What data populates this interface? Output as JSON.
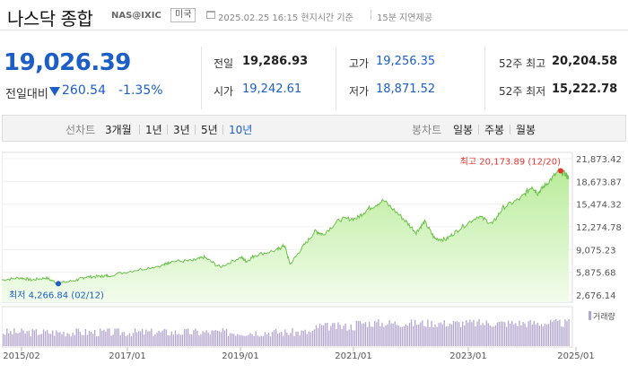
{
  "header": {
    "title": "나스닥 종합",
    "code": "NAS@IXIC",
    "country": "미국",
    "timestamp": "2025.02.25 16:15 현지시간 기준",
    "delay": "15분 지연제공"
  },
  "quote": {
    "price": "19,026.39",
    "change_label": "전일대비",
    "change_value": "260.54",
    "change_pct": "-1.35%",
    "direction": "down"
  },
  "stats": {
    "prev_close_label": "전일",
    "prev_close": "19,286.93",
    "open_label": "시가",
    "open": "19,242.61",
    "high_label": "고가",
    "high": "19,256.35",
    "low_label": "저가",
    "low": "18,871.52",
    "w52_high_label": "52주 최고",
    "w52_high": "20,204.58",
    "w52_low_label": "52주 최저",
    "w52_low": "15,222.78"
  },
  "tabs": {
    "line_label": "선차트",
    "periods": [
      "3개월",
      "1년",
      "3년",
      "5년",
      "10년"
    ],
    "active_period": "10년",
    "candle_label": "봉차트",
    "candles": [
      "일봉",
      "주봉",
      "월봉"
    ]
  },
  "colors": {
    "accent": "#1b5ec6",
    "line": "#6cc24a",
    "area": "#d9f5c8",
    "high_marker": "#e8322e",
    "low_marker": "#1b5ec6",
    "volume": "#b3a6cf"
  },
  "chart_data": {
    "type": "area",
    "x_range": [
      "2015/02",
      "2025/02"
    ],
    "x_ticks": [
      "2015/02",
      "2017/01",
      "2019/01",
      "2021/01",
      "2023/01",
      "2025/01"
    ],
    "y_ticks": [
      "21,873.42",
      "18,673.87",
      "15,474.32",
      "12,274.78",
      "9,075.23",
      "5,875.68",
      "2,676.14"
    ],
    "ylim": [
      2676.14,
      21873.42
    ],
    "high_annotation": "최고 20,173.89 (12/20)",
    "low_annotation": "최저 4,266.84 (02/12)",
    "volume_label": "거래량",
    "series": [
      {
        "x": [
          2015.12,
          2015.45,
          2015.65,
          2015.9,
          2016.12,
          2016.45,
          2016.6,
          2016.85,
          2017.0,
          2017.5,
          2017.99,
          2018.1,
          2018.5,
          2018.7,
          2018.98,
          2019.35,
          2019.45,
          2019.6,
          2019.99,
          2020.12,
          2020.22,
          2020.45,
          2020.67,
          2020.8,
          2021.1,
          2021.4,
          2021.6,
          2021.87,
          2022.2,
          2022.45,
          2022.6,
          2022.78,
          2022.98,
          2023.2,
          2023.55,
          2023.8,
          2023.99,
          2024.3,
          2024.5,
          2024.6,
          2024.75,
          2024.97,
          2025.1,
          2025.15
        ],
        "y": [
          4800,
          5100,
          4800,
          5100,
          4300,
          4800,
          5200,
          5300,
          5400,
          6200,
          6900,
          7400,
          7500,
          8000,
          6600,
          8000,
          7400,
          8300,
          9000,
          9700,
          7000,
          9500,
          11700,
          11200,
          13300,
          13500,
          14800,
          16000,
          13600,
          11500,
          13000,
          10600,
          10500,
          11900,
          13800,
          12700,
          15000,
          16300,
          18000,
          17000,
          18300,
          20100,
          19700,
          19026
        ]
      }
    ]
  }
}
